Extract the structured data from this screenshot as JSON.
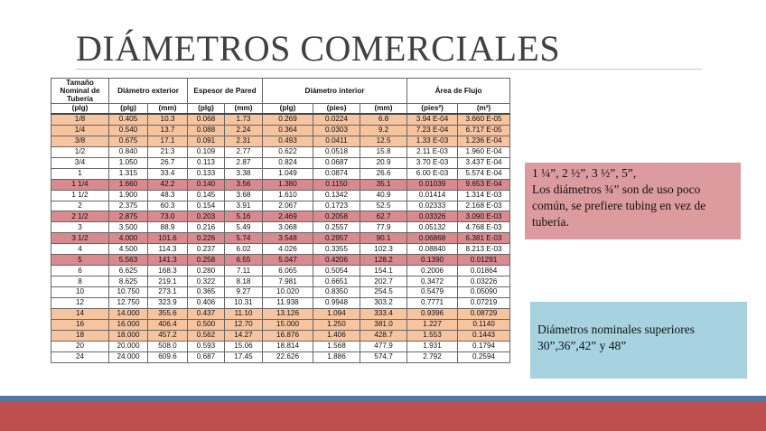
{
  "title": "DIÁMETROS COMERCIALES",
  "table": {
    "group_headers": [
      "Tamaño Nominal de Tubería",
      "Diámetro exterior",
      "Espesor de Pared",
      "Diámetro interior",
      "Área de Flujo"
    ],
    "unit_headers": [
      "(plg)",
      "(plg)",
      "(mm)",
      "(plg)",
      "(mm)",
      "(plg)",
      "(pies)",
      "(mm)",
      "(pies²)",
      "(m²)"
    ],
    "rows": [
      {
        "cells": [
          "1/8",
          "0.405",
          "10.3",
          "0.068",
          "1.73",
          "0.269",
          "0.0224",
          "6.8",
          "3.94 E-04",
          "3.660 E-05"
        ],
        "highlight": "orange"
      },
      {
        "cells": [
          "1/4",
          "0.540",
          "13.7",
          "0.088",
          "2.24",
          "0.364",
          "0.0303",
          "9.2",
          "7.23 E-04",
          "6.717 E-05"
        ],
        "highlight": "orange"
      },
      {
        "cells": [
          "3/8",
          "0.675",
          "17.1",
          "0.091",
          "2.31",
          "0.493",
          "0.0411",
          "12.5",
          "1.33 E-03",
          "1.236 E-04"
        ],
        "highlight": "orange"
      },
      {
        "cells": [
          "1/2",
          "0.840",
          "21.3",
          "0.109",
          "2.77",
          "0.622",
          "0.0518",
          "15.8",
          "2.11 E-03",
          "1.960 E-04"
        ],
        "highlight": "none"
      },
      {
        "cells": [
          "3/4",
          "1.050",
          "26.7",
          "0.113",
          "2.87",
          "0.824",
          "0.0687",
          "20.9",
          "3.70 E-03",
          "3.437 E-04"
        ],
        "highlight": "none"
      },
      {
        "cells": [
          "1",
          "1.315",
          "33.4",
          "0.133",
          "3.38",
          "1.049",
          "0.0874",
          "26.6",
          "6.00 E-03",
          "5.574 E-04"
        ],
        "highlight": "none"
      },
      {
        "cells": [
          "1 1/4",
          "1.660",
          "42.2",
          "0.140",
          "3.56",
          "1.380",
          "0.1150",
          "35.1",
          "0.01039",
          "9.653 E-04"
        ],
        "highlight": "pink"
      },
      {
        "cells": [
          "1 1/2",
          "1.900",
          "48.3",
          "0.145",
          "3.68",
          "1.610",
          "0.1342",
          "40.9",
          "0.01414",
          "1.314 E-03"
        ],
        "highlight": "none"
      },
      {
        "cells": [
          "2",
          "2.375",
          "60.3",
          "0.154",
          "3.91",
          "2.067",
          "0.1723",
          "52.5",
          "0.02333",
          "2.168 E-03"
        ],
        "highlight": "none"
      },
      {
        "cells": [
          "2 1/2",
          "2.875",
          "73.0",
          "0.203",
          "5.16",
          "2.469",
          "0.2058",
          "62.7",
          "0.03326",
          "3.090 E-03"
        ],
        "highlight": "pink"
      },
      {
        "cells": [
          "3",
          "3.500",
          "88.9",
          "0.216",
          "5.49",
          "3.068",
          "0.2557",
          "77.9",
          "0.05132",
          "4.768 E-03"
        ],
        "highlight": "none"
      },
      {
        "cells": [
          "3 1/2",
          "4.000",
          "101.6",
          "0.226",
          "5.74",
          "3.548",
          "0.2957",
          "90.1",
          "0.06868",
          "6.381 E-03"
        ],
        "highlight": "pink"
      },
      {
        "cells": [
          "4",
          "4.500",
          "114.3",
          "0.237",
          "6.02",
          "4.026",
          "0.3355",
          "102.3",
          "0.08840",
          "8.213 E-03"
        ],
        "highlight": "none"
      },
      {
        "cells": [
          "5",
          "5.563",
          "141.3",
          "0.258",
          "6.55",
          "5.047",
          "0.4206",
          "128.2",
          "0.1390",
          "0.01291"
        ],
        "highlight": "pink"
      },
      {
        "cells": [
          "6",
          "6.625",
          "168.3",
          "0.280",
          "7.11",
          "6.065",
          "0.5054",
          "154.1",
          "0.2006",
          "0.01864"
        ],
        "highlight": "none"
      },
      {
        "cells": [
          "8",
          "8.625",
          "219.1",
          "0.322",
          "8.18",
          "7.981",
          "0.6651",
          "202.7",
          "0.3472",
          "0.03226"
        ],
        "highlight": "none"
      },
      {
        "cells": [
          "10",
          "10.750",
          "273.1",
          "0.365",
          "9.27",
          "10.020",
          "0.8350",
          "254.5",
          "0.5479",
          "0.05090"
        ],
        "highlight": "none"
      },
      {
        "cells": [
          "12",
          "12.750",
          "323.9",
          "0.406",
          "10.31",
          "11.938",
          "0.9948",
          "303.2",
          "0.7771",
          "0.07219"
        ],
        "highlight": "none"
      },
      {
        "cells": [
          "14",
          "14.000",
          "355.6",
          "0.437",
          "11.10",
          "13.126",
          "1.094",
          "333.4",
          "0.9396",
          "0.08729"
        ],
        "highlight": "orange"
      },
      {
        "cells": [
          "16",
          "16.000",
          "406.4",
          "0.500",
          "12.70",
          "15.000",
          "1.250",
          "381.0",
          "1.227",
          "0.1140"
        ],
        "highlight": "orange"
      },
      {
        "cells": [
          "18",
          "18.000",
          "457.2",
          "0.562",
          "14.27",
          "16.876",
          "1.406",
          "428.7",
          "1.553",
          "0.1443"
        ],
        "highlight": "orange"
      },
      {
        "cells": [
          "20",
          "20.000",
          "508.0",
          "0.593",
          "15.06",
          "18.814",
          "1.568",
          "477.9",
          "1.931",
          "0.1794"
        ],
        "highlight": "none"
      },
      {
        "cells": [
          "24",
          "24.000",
          "609.6",
          "0.687",
          "17.45",
          "22.626",
          "1.886",
          "574.7",
          "2.792",
          "0.2594"
        ],
        "highlight": "none"
      }
    ]
  },
  "note_red": {
    "line1": "1 ¼”, 2 ½”, 3 ½”, 5”,",
    "line2": "Los diámetros ¾” son de uso poco común, se prefiere tubing en vez de tubería."
  },
  "note_blue": {
    "text": "Diámetros nominales superiores 30”,36”,42” y 48”"
  },
  "colors": {
    "orange_row": "#f7c4a0",
    "pink_row": "#d98a8f",
    "note_red_bg": "#dc9c9f",
    "note_blue_bg": "#a7d3e0",
    "band_blue": "#5079a8",
    "band_red": "#be4f4f"
  }
}
